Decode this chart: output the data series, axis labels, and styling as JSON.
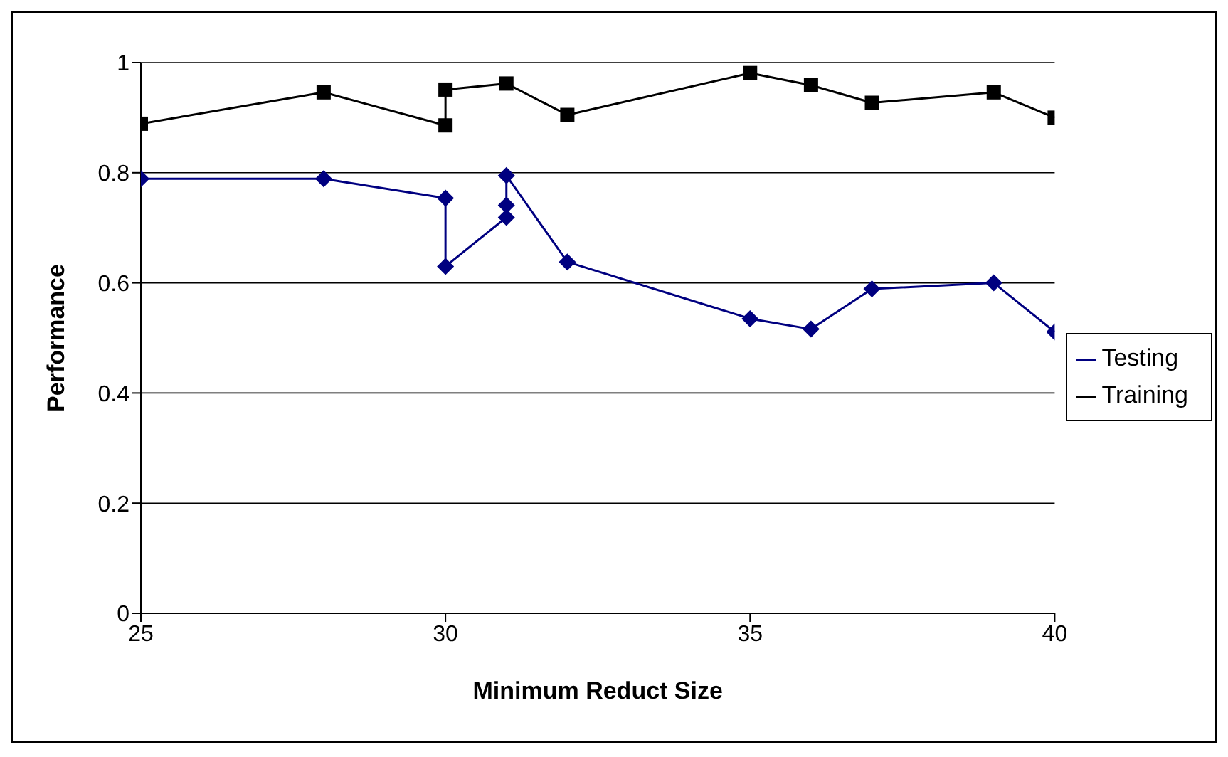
{
  "chart_data": {
    "type": "line",
    "xlabel": "Minimum Reduct Size",
    "ylabel": "Performance",
    "xlim": [
      25,
      40
    ],
    "xticks": [
      25,
      30,
      35,
      40
    ],
    "ylim": [
      0,
      1
    ],
    "yticks": [
      0,
      0.2,
      0.4,
      0.6,
      0.8,
      1
    ],
    "grid": "y",
    "legend": "right",
    "series": [
      {
        "name": "Training",
        "color": "#000000",
        "marker": "square",
        "x": [
          25,
          28,
          30,
          30,
          31,
          32,
          35,
          36,
          37,
          39,
          40
        ],
        "values": [
          0.889,
          0.946,
          0.886,
          0.951,
          0.962,
          0.905,
          0.981,
          0.959,
          0.927,
          0.946,
          0.9
        ]
      },
      {
        "name": "Testing",
        "color": "#000080",
        "marker": "diamond",
        "x": [
          25,
          28,
          30,
          30,
          31,
          31,
          31,
          32,
          35,
          36,
          37,
          39,
          40
        ],
        "values": [
          0.789,
          0.789,
          0.754,
          0.63,
          0.719,
          0.741,
          0.795,
          0.638,
          0.535,
          0.516,
          0.589,
          0.6,
          0.511
        ]
      }
    ]
  }
}
